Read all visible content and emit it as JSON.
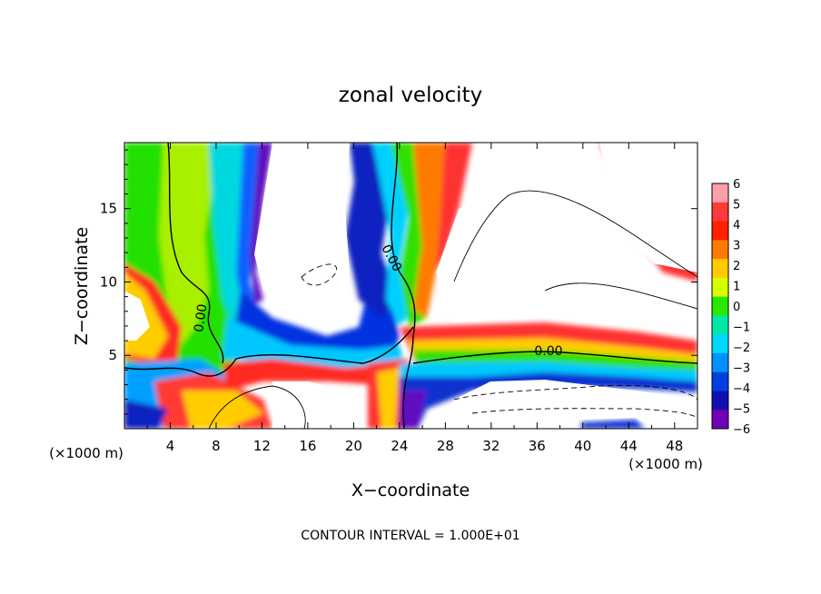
{
  "chart_data": {
    "type": "heatmap",
    "title": "zonal velocity",
    "xlabel": "X−coordinate",
    "ylabel": "Z−coordinate",
    "x_unit_left": "(×1000 m)",
    "x_unit_right": "(×1000 m)",
    "xlim": [
      0,
      50
    ],
    "ylim": [
      0,
      19.5
    ],
    "x_ticks": [
      4,
      8,
      12,
      16,
      20,
      24,
      28,
      32,
      36,
      40,
      44,
      48
    ],
    "x_tick_labels": [
      "4",
      "8",
      "12",
      "16",
      "20",
      "24",
      "28",
      "32",
      "36",
      "40",
      "44",
      "48"
    ],
    "y_ticks": [
      5,
      10,
      15
    ],
    "y_tick_labels": [
      "5",
      "10",
      "15"
    ],
    "contour_labels": [
      {
        "text": "0.00",
        "x": 7.0,
        "y": 7.5,
        "angle": -82
      },
      {
        "text": "0.00",
        "x": 23.0,
        "y": 11.5,
        "angle": 62
      },
      {
        "text": "0.00",
        "x": 37.0,
        "y": 5.0,
        "angle": 0
      }
    ],
    "colorbar": {
      "tick_labels": [
        "6",
        "5",
        "4",
        "3",
        "2",
        "1",
        "0",
        "−1",
        "−2",
        "−3",
        "−4",
        "−5",
        "−6"
      ],
      "levels": [
        6,
        5,
        4,
        3,
        2,
        1,
        0,
        -1,
        -2,
        -3,
        -4,
        -5,
        -6
      ],
      "colors": [
        "#ff9fa8",
        "#ff3a38",
        "#ff2000",
        "#ff7a00",
        "#ffcc00",
        "#d8ff00",
        "#28e800",
        "#00e8a8",
        "#00d8ff",
        "#0090ff",
        "#0040e0",
        "#1010b0",
        "#7000b8"
      ]
    },
    "footnote": "CONTOUR INTERVAL = 1.000E+01"
  }
}
